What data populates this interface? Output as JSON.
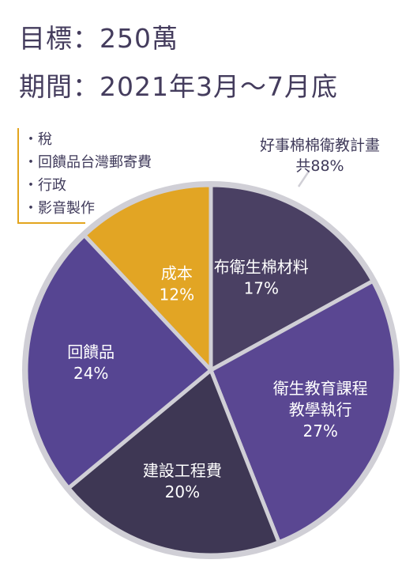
{
  "title": {
    "line1": "目標：250萬",
    "line2": "期間：2021年3月～7月底"
  },
  "note": {
    "items": [
      "稅",
      "回饋品台灣郵寄費",
      "行政",
      "影音製作"
    ]
  },
  "total_label": {
    "line1": "好事棉棉衛教計畫",
    "line2": "共88%"
  },
  "chart_data": {
    "type": "pie",
    "title": "",
    "slices": [
      {
        "label_lines": [
          "布衛生棉材料"
        ],
        "value": 17,
        "value_label": "17%",
        "color": "#4a4063"
      },
      {
        "label_lines": [
          "衛生教育課程",
          "教學執行"
        ],
        "value": 27,
        "value_label": "27%",
        "color": "#5a4792"
      },
      {
        "label_lines": [
          "建設工程費"
        ],
        "value": 20,
        "value_label": "20%",
        "color": "#3e3754"
      },
      {
        "label_lines": [
          "回饋品"
        ],
        "value": 24,
        "value_label": "24%",
        "color": "#564592"
      },
      {
        "label_lines": [
          "成本"
        ],
        "value": 12,
        "value_label": "12%",
        "color": "#e2a524"
      }
    ],
    "ring_color": "#d0cfd6",
    "label_color": "#ffffff"
  }
}
